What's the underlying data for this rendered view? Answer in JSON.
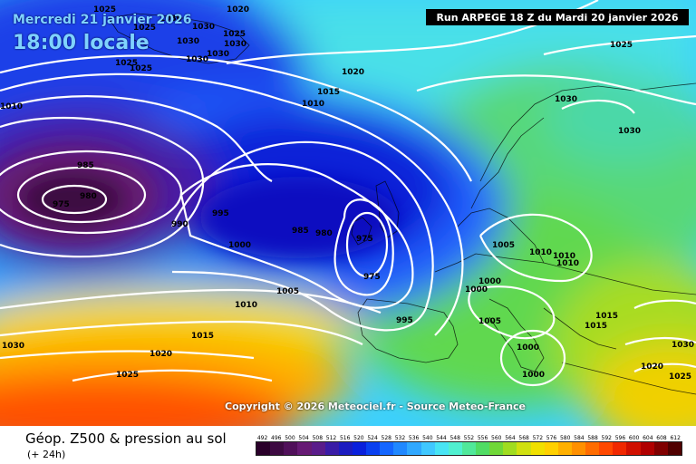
{
  "header": {
    "valid_date": "Mercredi 21 janvier 2026",
    "local_time": "18:00 locale",
    "run_info": "Run ARPEGE 18 Z du Mardi 20 janvier 2026"
  },
  "copyright": "Copyright © 2026 Meteociel.fr - Source Meteo-France",
  "legend": {
    "title": "Géop. Z500 & pression au sol",
    "subtitle": "(+ 24h)",
    "scale_values": [
      "492",
      "496",
      "500",
      "504",
      "508",
      "512",
      "516",
      "520",
      "524",
      "528",
      "532",
      "536",
      "540",
      "544",
      "548",
      "552",
      "556",
      "560",
      "564",
      "568",
      "572",
      "576",
      "580",
      "584",
      "588",
      "592",
      "596",
      "600",
      "604",
      "608",
      "612"
    ],
    "scale_colors": [
      "#2a002a",
      "#3d0a42",
      "#50105a",
      "#661a74",
      "#5a1c8a",
      "#3a1ca6",
      "#1c1cc0",
      "#0a20dc",
      "#0a40f0",
      "#1466ff",
      "#2088ff",
      "#30a8ff",
      "#40c8ff",
      "#48e4f4",
      "#50f0d0",
      "#50e89a",
      "#50dc64",
      "#70d838",
      "#a0dc20",
      "#d0e010",
      "#f0e000",
      "#ffd000",
      "#ffb000",
      "#ff9000",
      "#ff6c00",
      "#ff4800",
      "#f02800",
      "#d01000",
      "#b00000",
      "#800000",
      "#500000"
    ]
  },
  "isobar_labels": [
    "1025",
    "1025",
    "1030",
    "1030",
    "1030",
    "1020",
    "1025",
    "1025",
    "1030",
    "1030",
    "1030",
    "1020",
    "1025",
    "1015",
    "1010",
    "1010",
    "1025",
    "1030",
    "1030",
    "985",
    "980",
    "975",
    "990",
    "995",
    "1000",
    "985",
    "980",
    "975",
    "975",
    "1005",
    "1010",
    "1015",
    "1030",
    "1020",
    "1025",
    "995",
    "1005",
    "1000",
    "1000",
    "1005",
    "1010",
    "1010",
    "1010",
    "1000",
    "1000",
    "1015",
    "1015",
    "1030",
    "1020",
    "1025"
  ],
  "colors": {
    "isobar": "#ffffff",
    "coastline": "#000000",
    "run_box_bg": "#000000",
    "date_text": "#7fd3ff"
  }
}
